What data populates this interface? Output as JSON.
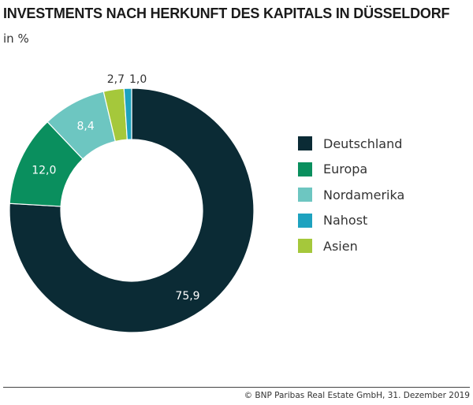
{
  "chart_data": {
    "type": "pie",
    "donut": true,
    "title": "INVESTMENTS NACH HERKUNFT DES KAPITALS IN DÜSSELDORF",
    "subtitle": "in %",
    "slices": [
      {
        "name": "Deutschland",
        "value": 75.9,
        "label": "75,9",
        "color": "#0b2b35"
      },
      {
        "name": "Europa",
        "value": 12.0,
        "label": "12,0",
        "color": "#0a8f5e"
      },
      {
        "name": "Nordamerika",
        "value": 8.4,
        "label": "8,4",
        "color": "#6dc6c1"
      },
      {
        "name": "Asien",
        "value": 2.7,
        "label": "2,7",
        "color": "#a5c83b"
      },
      {
        "name": "Nahost",
        "value": 1.0,
        "label": "1,0",
        "color": "#1ea2bf"
      }
    ],
    "legend": {
      "placement": "right",
      "order": [
        "Deutschland",
        "Europa",
        "Nordamerika",
        "Nahost",
        "Asien"
      ]
    }
  },
  "footer": "© BNP Paribas Real Estate GmbH, 31. Dezember 2019"
}
